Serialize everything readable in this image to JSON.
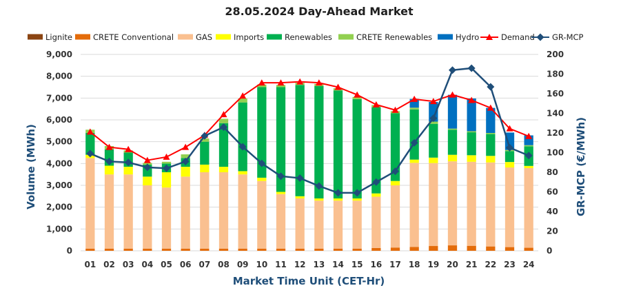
{
  "chart_data": {
    "type": "bar",
    "title": "28.05.2024  Day-Ahead Market",
    "xlabel": "Market Time Unit (CET-Hr)",
    "ylabel": "Volume (MWh)",
    "y2label": "GR-MCP (€/MWh)",
    "ylim": [
      0,
      9000
    ],
    "y2lim": [
      0,
      200
    ],
    "yticks": [
      "0",
      "1,000",
      "2,000",
      "3,000",
      "4,000",
      "5,000",
      "6,000",
      "7,000",
      "8,000",
      "9,000"
    ],
    "y2ticks": [
      "0",
      "20",
      "40",
      "60",
      "80",
      "100",
      "120",
      "140",
      "160",
      "180",
      "200"
    ],
    "grid": true,
    "legend_position": "top",
    "categories": [
      "01",
      "02",
      "03",
      "04",
      "05",
      "06",
      "07",
      "08",
      "09",
      "10",
      "11",
      "12",
      "13",
      "14",
      "15",
      "16",
      "17",
      "18",
      "19",
      "20",
      "21",
      "22",
      "23",
      "24"
    ],
    "stacked_series": [
      {
        "name": "Lignite",
        "color": "#8b4513",
        "values": [
          0,
          0,
          0,
          0,
          0,
          0,
          0,
          0,
          0,
          0,
          0,
          0,
          0,
          0,
          0,
          0,
          0,
          0,
          0,
          0,
          0,
          0,
          0,
          0
        ]
      },
      {
        "name": "CRETE Conventional",
        "color": "#e46c0a",
        "values": [
          100,
          100,
          100,
          100,
          100,
          100,
          100,
          100,
          100,
          100,
          100,
          100,
          100,
          100,
          100,
          130,
          150,
          180,
          220,
          250,
          230,
          200,
          170,
          140
        ]
      },
      {
        "name": "GAS",
        "color": "#fac090",
        "values": [
          4150,
          3400,
          3400,
          2900,
          2800,
          3300,
          3500,
          3500,
          3400,
          3100,
          2500,
          2300,
          2200,
          2200,
          2200,
          2350,
          2850,
          3850,
          3800,
          3850,
          3850,
          3850,
          3650,
          3650
        ]
      },
      {
        "name": "Imports",
        "color": "#ffff00",
        "values": [
          150,
          400,
          350,
          400,
          700,
          450,
          350,
          250,
          150,
          150,
          100,
          100,
          100,
          100,
          100,
          150,
          200,
          150,
          250,
          300,
          300,
          300,
          250,
          100
        ]
      },
      {
        "name": "Renewables",
        "color": "#00b050",
        "values": [
          1000,
          750,
          650,
          550,
          400,
          400,
          1050,
          2000,
          3150,
          4150,
          4800,
          5100,
          5150,
          4950,
          4550,
          3950,
          3100,
          2300,
          1550,
          1150,
          1050,
          1000,
          500,
          900
        ]
      },
      {
        "name": "CRETE Renewables",
        "color": "#92d050",
        "values": [
          150,
          150,
          100,
          80,
          80,
          170,
          150,
          200,
          180,
          120,
          100,
          100,
          100,
          100,
          100,
          100,
          100,
          80,
          100,
          50,
          50,
          50,
          50,
          50
        ]
      },
      {
        "name": "Hydro",
        "color": "#0070c0",
        "values": [
          0,
          0,
          0,
          0,
          0,
          0,
          0,
          0,
          0,
          0,
          0,
          0,
          0,
          0,
          0,
          0,
          0,
          400,
          900,
          1550,
          1500,
          1150,
          800,
          450
        ]
      }
    ],
    "line_series": [
      {
        "name": "Demand",
        "color": "#ff0000",
        "marker": "triangle",
        "axis": "left",
        "values": [
          5450,
          4750,
          4650,
          4150,
          4300,
          4750,
          5300,
          6250,
          7100,
          7700,
          7700,
          7750,
          7700,
          7500,
          7150,
          6700,
          6450,
          6950,
          6850,
          7150,
          6900,
          6550,
          5600,
          5250
        ]
      },
      {
        "name": "GR-MCP",
        "color": "#1f4e79",
        "marker": "diamond",
        "axis": "right",
        "values": [
          99,
          91,
          90,
          85,
          84,
          91,
          117,
          126,
          106,
          89,
          76,
          74,
          66,
          59,
          59,
          70,
          81,
          110,
          135,
          184,
          186,
          167,
          105,
          97
        ]
      }
    ]
  }
}
